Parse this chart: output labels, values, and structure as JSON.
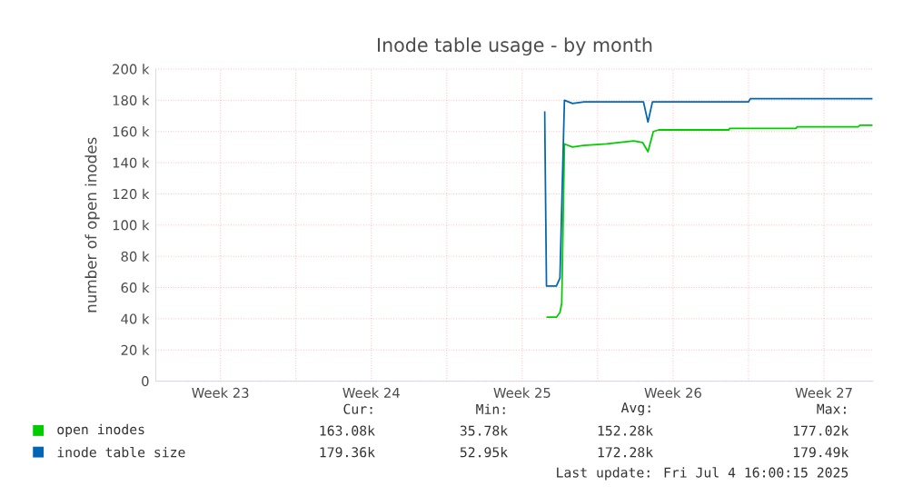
{
  "chart_data": {
    "type": "line",
    "title": "Inode table usage - by month",
    "ylabel": "number of open inodes",
    "xlim": [
      "2025-06-02T12:00",
      "2025-07-05T19:00"
    ],
    "ylim": [
      0,
      200000
    ],
    "xticks": [
      {
        "value": "2025-06-05T12:00",
        "label": "Week 23"
      },
      {
        "value": "2025-06-09T00:00",
        "label": null
      },
      {
        "value": "2025-06-12T12:00",
        "label": "Week 24"
      },
      {
        "value": "2025-06-16T00:00",
        "label": null
      },
      {
        "value": "2025-06-19T12:00",
        "label": "Week 25"
      },
      {
        "value": "2025-06-23T00:00",
        "label": null
      },
      {
        "value": "2025-06-26T12:00",
        "label": "Week 26"
      },
      {
        "value": "2025-06-30T00:00",
        "label": null
      },
      {
        "value": "2025-07-03T12:00",
        "label": "Week 27"
      }
    ],
    "yticks": [
      {
        "value": 0,
        "label": "0"
      },
      {
        "value": 20000,
        "label": "20 k"
      },
      {
        "value": 40000,
        "label": "40 k"
      },
      {
        "value": 60000,
        "label": "60 k"
      },
      {
        "value": 80000,
        "label": "80 k"
      },
      {
        "value": 100000,
        "label": "100 k"
      },
      {
        "value": 120000,
        "label": "120 k"
      },
      {
        "value": 140000,
        "label": "140 k"
      },
      {
        "value": 160000,
        "label": "160 k"
      },
      {
        "value": 180000,
        "label": "180 k"
      },
      {
        "value": 200000,
        "label": "200 k"
      }
    ],
    "grid": true,
    "legend": "bottom left",
    "marker": "none",
    "line_style": "solid",
    "series": [
      {
        "name": "open inodes",
        "color": "#00cc00",
        "x": [
          "2025-06-20T15:00",
          "2025-06-21T02:00",
          "2025-06-21T06:00",
          "2025-06-21T08:00",
          "2025-06-21T11:00",
          "2025-06-21T20:00",
          "2025-06-22T08:00",
          "2025-06-23T10:00",
          "2025-06-24T16:00",
          "2025-06-25T02:00",
          "2025-06-25T08:00",
          "2025-06-25T14:00",
          "2025-06-25T20:00",
          "2025-06-29T02:00",
          "2025-06-29T03:00",
          "2025-07-02T05:00",
          "2025-07-02T06:00",
          "2025-07-05T02:00",
          "2025-07-05T04:00",
          "2025-07-05T18:00"
        ],
        "values": [
          41000,
          41000,
          44000,
          50000,
          152000,
          150000,
          151000,
          152000,
          154000,
          153000,
          147000,
          160000,
          161000,
          161000,
          162000,
          162000,
          163000,
          163000,
          164000,
          164000
        ]
      },
      {
        "name": "inode table size",
        "color": "#0066b3",
        "x": [
          "2025-06-20T13:00",
          "2025-06-20T15:00",
          "2025-06-21T02:00",
          "2025-06-21T06:00",
          "2025-06-21T11:00",
          "2025-06-21T20:00",
          "2025-06-22T09:00",
          "2025-06-25T03:00",
          "2025-06-25T08:00",
          "2025-06-25T13:00",
          "2025-06-30T00:00",
          "2025-06-30T02:00",
          "2025-07-05T18:00"
        ],
        "values": [
          173000,
          61000,
          61000,
          66000,
          180000,
          178000,
          179000,
          179000,
          166000,
          179000,
          179000,
          181000,
          181000
        ]
      }
    ],
    "annotations": [
      "Cur:",
      "Min:",
      "Avg:",
      "Max:",
      "163.08k",
      "35.78k",
      "152.28k",
      "177.02k",
      "179.36k",
      "52.95k",
      "172.28k",
      "179.49k",
      "Last update: Fri Jul  4 16:00:15 2025"
    ]
  }
}
